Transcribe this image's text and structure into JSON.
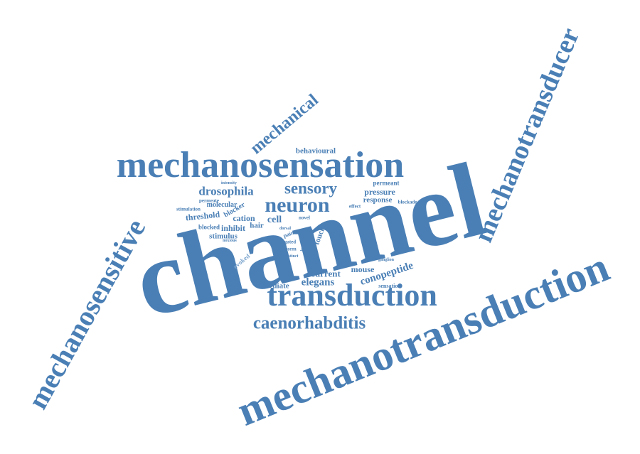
{
  "colors": {
    "word": "#4a7fb5",
    "light": "#7fa7cf",
    "background": "#ffffff"
  },
  "words": [
    {
      "id": "channel",
      "text": "channel",
      "tone": "word"
    },
    {
      "id": "mechanotransduction",
      "text": "mechanotransduction",
      "tone": "word"
    },
    {
      "id": "mechanosensation",
      "text": "mechanosensation",
      "tone": "word"
    },
    {
      "id": "mechanosensitive",
      "text": "mechanosensitive",
      "tone": "word"
    },
    {
      "id": "mechanotransducer",
      "text": "mechanotransducer",
      "tone": "word"
    },
    {
      "id": "transduction",
      "text": "transduction",
      "tone": "word"
    },
    {
      "id": "neuron",
      "text": "neuron",
      "tone": "word"
    },
    {
      "id": "caenorhabditis",
      "text": "caenorhabditis",
      "tone": "word"
    },
    {
      "id": "sensory",
      "text": "sensory",
      "tone": "word"
    },
    {
      "id": "mechanical",
      "text": "mechanical",
      "tone": "word"
    },
    {
      "id": "drosophila",
      "text": "drosophila",
      "tone": "word"
    },
    {
      "id": "elegans",
      "text": "elegans",
      "tone": "word"
    },
    {
      "id": "conopeptide",
      "text": "conopeptide",
      "tone": "word"
    },
    {
      "id": "current",
      "text": "current",
      "tone": "word"
    },
    {
      "id": "mouse",
      "text": "mouse",
      "tone": "word"
    },
    {
      "id": "mediate",
      "text": "mediate",
      "tone": "word"
    },
    {
      "id": "cell",
      "text": "cell",
      "tone": "word"
    },
    {
      "id": "cation",
      "text": "cation",
      "tone": "word"
    },
    {
      "id": "inhibit",
      "text": "inhibit",
      "tone": "word"
    },
    {
      "id": "hair",
      "text": "hair",
      "tone": "word"
    },
    {
      "id": "stimulus",
      "text": "stimulus",
      "tone": "word"
    },
    {
      "id": "threshold",
      "text": "threshold",
      "tone": "word"
    },
    {
      "id": "behavioural",
      "text": "behavioural",
      "tone": "word"
    },
    {
      "id": "pressure",
      "text": "pressure",
      "tone": "word"
    },
    {
      "id": "response",
      "text": "response",
      "tone": "word"
    },
    {
      "id": "molecular",
      "text": "molecular",
      "tone": "word"
    },
    {
      "id": "touch",
      "text": "touch",
      "tone": "word"
    },
    {
      "id": "permeant",
      "text": "permeant",
      "tone": "word"
    },
    {
      "id": "blocker",
      "text": "blocker",
      "tone": "word"
    },
    {
      "id": "blocked",
      "text": "blocked",
      "tone": "word"
    },
    {
      "id": "stimulation",
      "text": "stimulation",
      "tone": "word"
    },
    {
      "id": "blockade",
      "text": "blockade",
      "tone": "word"
    },
    {
      "id": "effect",
      "text": "effect",
      "tone": "word"
    },
    {
      "id": "novel",
      "text": "novel",
      "tone": "word"
    },
    {
      "id": "pain",
      "text": "pain",
      "tone": "word"
    },
    {
      "id": "gated",
      "text": "gated",
      "tone": "word"
    },
    {
      "id": "worm",
      "text": "worm",
      "tone": "word"
    },
    {
      "id": "distinct",
      "text": "distinct",
      "tone": "word"
    },
    {
      "id": "sensation",
      "text": "sensation",
      "tone": "word"
    },
    {
      "id": "ganglion",
      "text": "ganglion",
      "tone": "word"
    },
    {
      "id": "evoked",
      "text": "evoked",
      "tone": "light"
    },
    {
      "id": "intensity",
      "text": "intensity",
      "tone": "word"
    },
    {
      "id": "permeate",
      "text": "permeate",
      "tone": "word"
    },
    {
      "id": "noxious",
      "text": "noxious",
      "tone": "word"
    },
    {
      "id": "dorsal",
      "text": "dorsal",
      "tone": "word"
    },
    {
      "id": "voltage",
      "text": "voltage",
      "tone": "word"
    }
  ]
}
